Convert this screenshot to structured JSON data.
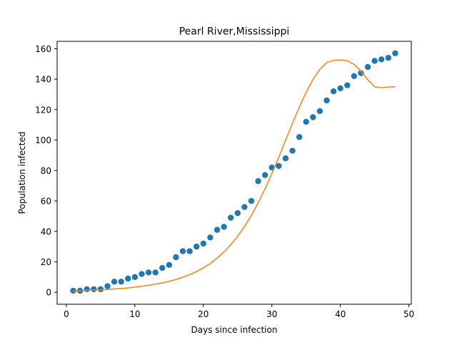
{
  "chart_data": {
    "type": "scatter",
    "title": "Pearl River,Mississippi",
    "xlabel": "Days since infection",
    "ylabel": "Population infected",
    "xlim": [
      -1.35,
      50.35
    ],
    "ylim": [
      -7.85,
      164.85
    ],
    "xticks": [
      0,
      10,
      20,
      30,
      40,
      50
    ],
    "yticks": [
      0,
      20,
      40,
      60,
      80,
      100,
      120,
      140,
      160
    ],
    "grid": false,
    "series": [
      {
        "kind": "scatter",
        "color": "#1f77b4",
        "x": [
          1,
          2,
          3,
          4,
          5,
          6,
          7,
          8,
          9,
          10,
          11,
          12,
          13,
          14,
          15,
          16,
          17,
          18,
          19,
          20,
          21,
          22,
          23,
          24,
          25,
          26,
          27,
          28,
          29,
          30,
          31,
          32,
          33,
          34,
          35,
          36,
          37,
          38,
          39,
          40,
          41,
          42,
          43,
          44,
          45,
          46,
          47,
          48
        ],
        "y": [
          1,
          1,
          2,
          2,
          2,
          4,
          7,
          7,
          9,
          10,
          12,
          13,
          13,
          16,
          18,
          23,
          27,
          27,
          30,
          32,
          36,
          41,
          43,
          49,
          52,
          56,
          60,
          73,
          77,
          82,
          83,
          88,
          93,
          102,
          112,
          115,
          119,
          126,
          132,
          134,
          136,
          142,
          144,
          148,
          152,
          153,
          154,
          157
        ]
      },
      {
        "kind": "line",
        "color": "#ff7f0e",
        "x": [
          1,
          2,
          3,
          4,
          5,
          6,
          7,
          8,
          9,
          10,
          11,
          12,
          13,
          14,
          15,
          16,
          17,
          18,
          19,
          20,
          21,
          22,
          23,
          24,
          25,
          26,
          27,
          28,
          29,
          30,
          31,
          32,
          33,
          34,
          35,
          36,
          37,
          38,
          39,
          40,
          41,
          42,
          43,
          44,
          45,
          46,
          47,
          48
        ],
        "y": [
          0.8,
          1.0,
          1.2,
          1.4,
          1.6,
          1.9,
          2.2,
          2.5,
          2.9,
          3.4,
          4.0,
          4.6,
          5.3,
          6.2,
          7.2,
          8.4,
          9.9,
          11.6,
          13.6,
          16.0,
          18.9,
          22.4,
          26.5,
          31.3,
          36.8,
          43.2,
          50.5,
          58.8,
          68.0,
          78.0,
          88.7,
          99.8,
          110.9,
          121.6,
          131.4,
          139.9,
          146.5,
          150.9,
          152.4,
          152.6,
          152.1,
          149.7,
          145.2,
          139.6,
          135.0,
          134.4,
          134.9,
          135.0
        ]
      }
    ]
  }
}
